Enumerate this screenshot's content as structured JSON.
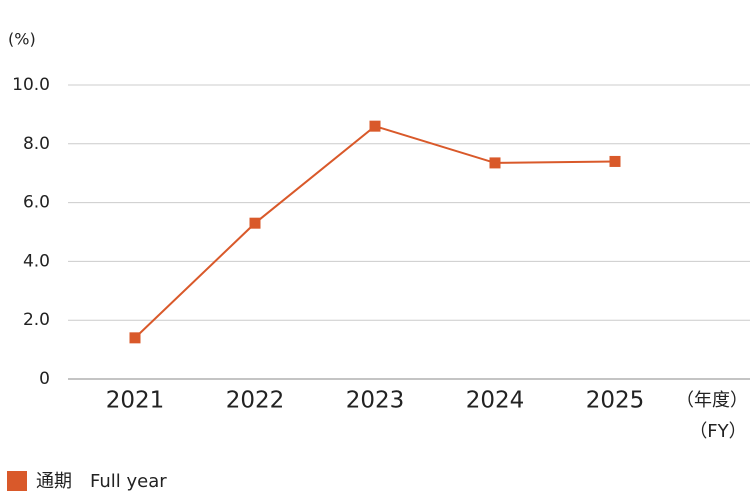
{
  "chart_data": {
    "type": "line",
    "y_label": "(%)",
    "x_label": [
      "（年度）",
      "（FY）"
    ],
    "categories": [
      "2021",
      "2022",
      "2023",
      "2024",
      "2025"
    ],
    "series": [
      {
        "name": "通期　Full year",
        "color": "#d9592a",
        "values": [
          1.4,
          5.3,
          8.6,
          7.35,
          7.4
        ]
      }
    ],
    "ylim": [
      0,
      10
    ],
    "yticks": [
      0,
      {
        "value": 2,
        "label": "2.0"
      },
      {
        "value": 4,
        "label": "4.0"
      },
      {
        "value": 6,
        "label": "6.0"
      },
      {
        "value": 8,
        "label": "8.0"
      },
      {
        "value": 10,
        "label": "10.0"
      }
    ],
    "grid": true
  }
}
